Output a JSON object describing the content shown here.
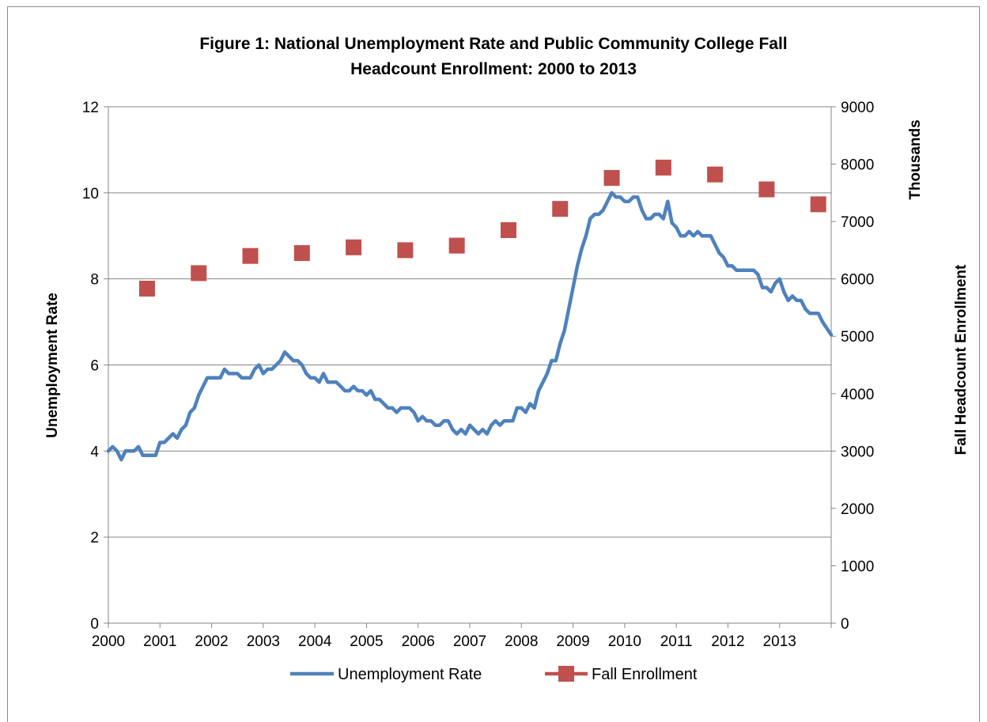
{
  "chart_data": {
    "type": "line",
    "title": "Figure 1: National Unemployment Rate and Public Community College Fall Headcount Enrollment: 2000 to 2013",
    "title_lines": [
      "Figure 1: National Unemployment Rate and Public Community College Fall",
      "Headcount Enrollment: 2000 to 2013"
    ],
    "x_ticks": [
      "2000",
      "2001",
      "2002",
      "2003",
      "2004",
      "2005",
      "2006",
      "2007",
      "2008",
      "2009",
      "2010",
      "2011",
      "2012",
      "2013"
    ],
    "xlim": [
      2000,
      2014
    ],
    "y_left": {
      "label": "Unemployment Rate",
      "lim": [
        0,
        12
      ],
      "ticks": [
        0,
        2,
        4,
        6,
        8,
        10,
        12
      ]
    },
    "y_right": {
      "label": "Fall Headcount Enrollment",
      "unit_label": "Thousands",
      "lim": [
        0,
        9000
      ],
      "ticks": [
        0,
        1000,
        2000,
        3000,
        4000,
        5000,
        6000,
        7000,
        8000,
        9000
      ]
    },
    "grid": true,
    "legend_position": "bottom",
    "series": [
      {
        "name": "Unemployment Rate",
        "axis": "left",
        "kind": "line",
        "color": "#4f81bd",
        "start": "2000-01",
        "step": "monthly",
        "values": [
          4.0,
          4.1,
          4.0,
          3.8,
          4.0,
          4.0,
          4.0,
          4.1,
          3.9,
          3.9,
          3.9,
          3.9,
          4.2,
          4.2,
          4.3,
          4.4,
          4.3,
          4.5,
          4.6,
          4.9,
          5.0,
          5.3,
          5.5,
          5.7,
          5.7,
          5.7,
          5.7,
          5.9,
          5.8,
          5.8,
          5.8,
          5.7,
          5.7,
          5.7,
          5.9,
          6.0,
          5.8,
          5.9,
          5.9,
          6.0,
          6.1,
          6.3,
          6.2,
          6.1,
          6.1,
          6.0,
          5.8,
          5.7,
          5.7,
          5.6,
          5.8,
          5.6,
          5.6,
          5.6,
          5.5,
          5.4,
          5.4,
          5.5,
          5.4,
          5.4,
          5.3,
          5.4,
          5.2,
          5.2,
          5.1,
          5.0,
          5.0,
          4.9,
          5.0,
          5.0,
          5.0,
          4.9,
          4.7,
          4.8,
          4.7,
          4.7,
          4.6,
          4.6,
          4.7,
          4.7,
          4.5,
          4.4,
          4.5,
          4.4,
          4.6,
          4.5,
          4.4,
          4.5,
          4.4,
          4.6,
          4.7,
          4.6,
          4.7,
          4.7,
          4.7,
          5.0,
          5.0,
          4.9,
          5.1,
          5.0,
          5.4,
          5.6,
          5.8,
          6.1,
          6.1,
          6.5,
          6.8,
          7.3,
          7.8,
          8.3,
          8.7,
          9.0,
          9.4,
          9.5,
          9.5,
          9.6,
          9.8,
          10.0,
          9.9,
          9.9,
          9.8,
          9.8,
          9.9,
          9.9,
          9.6,
          9.4,
          9.4,
          9.5,
          9.5,
          9.4,
          9.8,
          9.3,
          9.2,
          9.0,
          9.0,
          9.1,
          9.0,
          9.1,
          9.0,
          9.0,
          9.0,
          8.8,
          8.6,
          8.5,
          8.3,
          8.3,
          8.2,
          8.2,
          8.2,
          8.2,
          8.2,
          8.1,
          7.8,
          7.8,
          7.7,
          7.9,
          8.0,
          7.7,
          7.5,
          7.6,
          7.5,
          7.5,
          7.3,
          7.2,
          7.2,
          7.2,
          7.0,
          6.7
        ]
      },
      {
        "name": "Fall Enrollment",
        "axis": "right",
        "kind": "marker",
        "color": "#c0504d",
        "x": [
          2000.75,
          2001.75,
          2002.75,
          2003.75,
          2004.75,
          2005.75,
          2006.75,
          2007.75,
          2008.75,
          2009.75,
          2010.75,
          2011.75,
          2012.75,
          2013.75
        ],
        "values": [
          5830,
          6100,
          6400,
          6450,
          6550,
          6500,
          6580,
          6850,
          7220,
          7760,
          7940,
          7820,
          7560,
          7300
        ]
      }
    ]
  }
}
